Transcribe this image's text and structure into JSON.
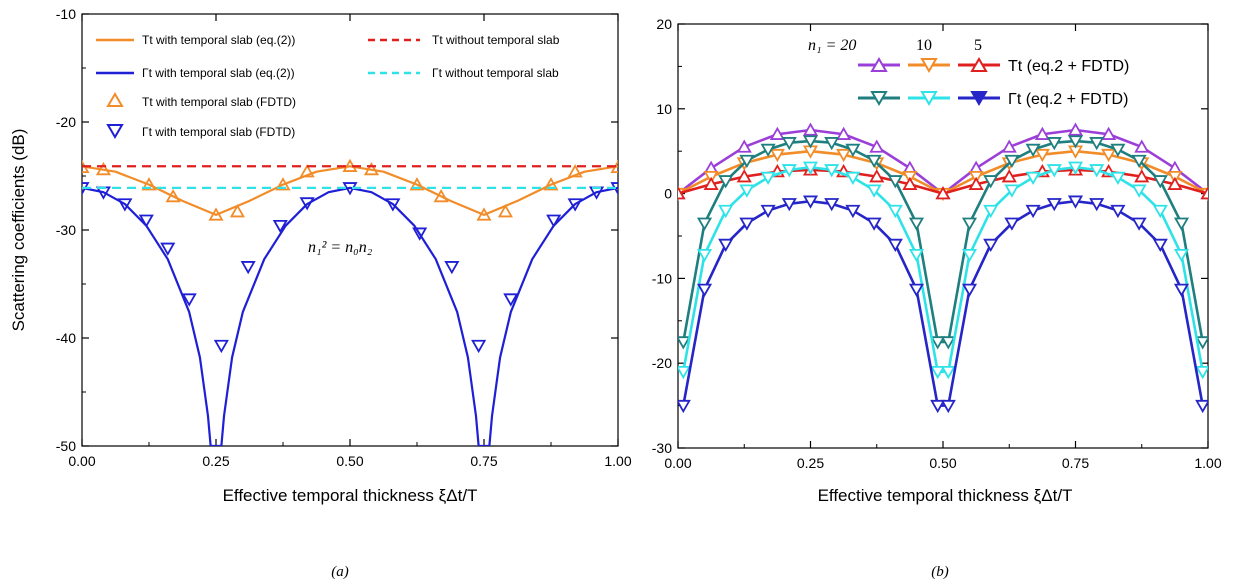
{
  "chart_data": [
    {
      "type": "line",
      "panel_label": "(a)",
      "xlabel": "Effective temporal thickness ξΔt/T",
      "ylabel": "Scattering coefficients (dB)",
      "xlim": [
        0,
        1
      ],
      "ylim": [
        -50,
        -10
      ],
      "x_ticks": [
        "0.00",
        "0.25",
        "0.50",
        "0.75",
        "1.00"
      ],
      "y_ticks": [
        "-10",
        "-20",
        "-30",
        "-40",
        "-50"
      ],
      "annotation": "n₁² = n₀n₂",
      "legend_placement": "top",
      "series": [
        {
          "name": "Tt with temporal slab (eq.(2))",
          "style": "solid",
          "color": "#f28c28",
          "x": [
            0,
            0.0625,
            0.125,
            0.1875,
            0.25,
            0.3125,
            0.375,
            0.4375,
            0.5,
            0.5625,
            0.625,
            0.6875,
            0.75,
            0.8125,
            0.875,
            0.9375,
            1
          ],
          "y": [
            -24.1,
            -24.6,
            -25.8,
            -27.3,
            -28.6,
            -27.3,
            -25.8,
            -24.6,
            -24.1,
            -24.6,
            -25.8,
            -27.3,
            -28.6,
            -27.3,
            -25.8,
            -24.6,
            -24.1
          ]
        },
        {
          "name": "Γt with temporal slab (eq.(2))",
          "style": "solid",
          "color": "#1f1fd6",
          "x": [
            0,
            0.04,
            0.08,
            0.12,
            0.16,
            0.2,
            0.22,
            0.235,
            0.24,
            0.26,
            0.265,
            0.28,
            0.3,
            0.34,
            0.38,
            0.42,
            0.46,
            0.5,
            0.54,
            0.58,
            0.62,
            0.66,
            0.7,
            0.72,
            0.735,
            0.74,
            0.76,
            0.765,
            0.78,
            0.8,
            0.84,
            0.88,
            0.92,
            0.96,
            1
          ],
          "y": [
            -26.1,
            -26.5,
            -27.6,
            -29.6,
            -32.7,
            -37.6,
            -41.8,
            -47.2,
            -50,
            -50,
            -47.2,
            -41.8,
            -37.6,
            -32.7,
            -29.6,
            -27.6,
            -26.5,
            -26.1,
            -26.5,
            -27.6,
            -29.6,
            -32.7,
            -37.6,
            -41.8,
            -47.2,
            -50,
            -50,
            -47.2,
            -41.8,
            -37.6,
            -32.7,
            -29.6,
            -27.6,
            -26.5,
            -26.1
          ]
        },
        {
          "name": "Tt with temporal slab (FDTD)",
          "style": "triangle-up",
          "color": "#f28c28",
          "x": [
            0,
            0.04,
            0.125,
            0.17,
            0.25,
            0.29,
            0.375,
            0.42,
            0.5,
            0.54,
            0.625,
            0.67,
            0.75,
            0.79,
            0.875,
            0.92,
            1
          ],
          "y": [
            -24.2,
            -24.4,
            -25.8,
            -26.9,
            -28.6,
            -28.3,
            -25.8,
            -24.6,
            -24.1,
            -24.4,
            -25.8,
            -26.9,
            -28.6,
            -28.3,
            -25.8,
            -24.6,
            -24.2
          ]
        },
        {
          "name": "Γt with temporal slab (FDTD)",
          "style": "triangle-down",
          "color": "#1f1fd6",
          "x": [
            0,
            0.04,
            0.08,
            0.12,
            0.16,
            0.2,
            0.26,
            0.31,
            0.37,
            0.42,
            0.5,
            0.58,
            0.63,
            0.69,
            0.74,
            0.8,
            0.88,
            0.92,
            0.96,
            1
          ],
          "y": [
            -26.1,
            -26.5,
            -27.6,
            -29.1,
            -31.7,
            -36.4,
            -40.7,
            -33.4,
            -29.6,
            -27.5,
            -26.1,
            -27.6,
            -30.3,
            -33.4,
            -40.7,
            -36.4,
            -29.1,
            -27.6,
            -26.5,
            -26.1
          ]
        },
        {
          "name": "Tt without temporal slab",
          "style": "dashed",
          "color": "#e0201f",
          "x": [
            0,
            1
          ],
          "y": [
            -24.1,
            -24.1
          ]
        },
        {
          "name": "Γt without temporal slab",
          "style": "dashed",
          "color": "#2ee3e8",
          "x": [
            0,
            1
          ],
          "y": [
            -26.1,
            -26.1
          ]
        }
      ]
    },
    {
      "type": "line",
      "panel_label": "(b)",
      "xlabel": "Effective temporal thickness ξΔt/T",
      "ylabel": "",
      "xlim": [
        0,
        1
      ],
      "ylim": [
        -30,
        20
      ],
      "x_ticks": [
        "0.00",
        "0.25",
        "0.50",
        "0.75",
        "1.00"
      ],
      "y_ticks": [
        "20",
        "10",
        "0",
        "-10",
        "-20",
        "-30"
      ],
      "legend_placement": "top-right",
      "legend_header": {
        "prefix": "n₁ = 20",
        "mid": "10",
        "last": "5"
      },
      "legend_rows": [
        "Tt (eq.2 + FDTD)",
        "Γt (eq.2 + FDTD)"
      ],
      "series": [
        {
          "name": "Tt n1=20",
          "style": "line-triangle-up",
          "color": "#9b3fd8",
          "x": [
            0,
            0.0625,
            0.125,
            0.1875,
            0.25,
            0.3125,
            0.375,
            0.4375,
            0.5,
            0.5625,
            0.625,
            0.6875,
            0.75,
            0.8125,
            0.875,
            0.9375,
            1
          ],
          "y": [
            0,
            3.0,
            5.5,
            7.0,
            7.5,
            7.0,
            5.5,
            3.0,
            0,
            3.0,
            5.5,
            7.0,
            7.5,
            7.0,
            5.5,
            3.0,
            0
          ]
        },
        {
          "name": "Tt n1=10",
          "style": "line-triangle-down",
          "color": "#f28c28",
          "x": [
            0,
            0.0625,
            0.125,
            0.1875,
            0.25,
            0.3125,
            0.375,
            0.4375,
            0.5,
            0.5625,
            0.625,
            0.6875,
            0.75,
            0.8125,
            0.875,
            0.9375,
            1
          ],
          "y": [
            0,
            2.0,
            3.6,
            4.6,
            5.0,
            4.6,
            3.6,
            2.0,
            0,
            2.0,
            3.6,
            4.6,
            5.0,
            4.6,
            3.6,
            2.0,
            0
          ]
        },
        {
          "name": "Tt n1=5",
          "style": "line-triangle-up",
          "color": "#e0201f",
          "x": [
            0,
            0.0625,
            0.125,
            0.1875,
            0.25,
            0.3125,
            0.375,
            0.4375,
            0.5,
            0.5625,
            0.625,
            0.6875,
            0.75,
            0.8125,
            0.875,
            0.9375,
            1
          ],
          "y": [
            0,
            1.1,
            2.0,
            2.6,
            2.8,
            2.6,
            2.0,
            1.1,
            0,
            1.1,
            2.0,
            2.6,
            2.8,
            2.6,
            2.0,
            1.1,
            0
          ]
        },
        {
          "name": "Γt n1=20",
          "style": "line-triangle-down",
          "color": "#1f7f7f",
          "x": [
            0.01,
            0.05,
            0.09,
            0.13,
            0.17,
            0.21,
            0.25,
            0.29,
            0.33,
            0.37,
            0.41,
            0.45,
            0.49,
            0.51,
            0.55,
            0.59,
            0.63,
            0.67,
            0.71,
            0.75,
            0.79,
            0.83,
            0.87,
            0.91,
            0.95,
            0.99
          ],
          "y": [
            -17.5,
            -3.5,
            1.5,
            3.9,
            5.2,
            6.0,
            6.2,
            6.0,
            5.2,
            3.9,
            1.5,
            -3.5,
            -17.5,
            -17.5,
            -3.5,
            1.5,
            3.9,
            5.2,
            6.0,
            6.2,
            6.0,
            5.2,
            3.9,
            1.5,
            -3.5,
            -17.5
          ]
        },
        {
          "name": "Γt n1=10",
          "style": "line-triangle-down",
          "color": "#2ee3e8",
          "x": [
            0.01,
            0.05,
            0.09,
            0.13,
            0.17,
            0.21,
            0.25,
            0.29,
            0.33,
            0.37,
            0.41,
            0.45,
            0.49,
            0.51,
            0.55,
            0.59,
            0.63,
            0.67,
            0.71,
            0.75,
            0.79,
            0.83,
            0.87,
            0.91,
            0.95,
            0.99
          ],
          "y": [
            -21.0,
            -7.2,
            -2.0,
            0.4,
            1.9,
            2.8,
            3.1,
            2.8,
            1.9,
            0.4,
            -2.0,
            -7.2,
            -21.0,
            -21.0,
            -7.2,
            -2.0,
            0.4,
            1.9,
            2.8,
            3.1,
            2.8,
            1.9,
            0.4,
            -2.0,
            -7.2,
            -21.0
          ]
        },
        {
          "name": "Γt n1=5",
          "style": "line-triangle-down",
          "color": "#2525c8",
          "x": [
            0.01,
            0.05,
            0.09,
            0.13,
            0.17,
            0.21,
            0.25,
            0.29,
            0.33,
            0.37,
            0.41,
            0.45,
            0.49,
            0.51,
            0.55,
            0.59,
            0.63,
            0.67,
            0.71,
            0.75,
            0.79,
            0.83,
            0.87,
            0.91,
            0.95,
            0.99
          ],
          "y": [
            -25.0,
            -11.3,
            -6.0,
            -3.5,
            -2.0,
            -1.2,
            -0.9,
            -1.2,
            -2.0,
            -3.5,
            -6.0,
            -11.3,
            -25.0,
            -25.0,
            -11.3,
            -6.0,
            -3.5,
            -2.0,
            -1.2,
            -0.9,
            -1.2,
            -2.0,
            -3.5,
            -6.0,
            -11.3,
            -25.0
          ]
        }
      ]
    }
  ]
}
